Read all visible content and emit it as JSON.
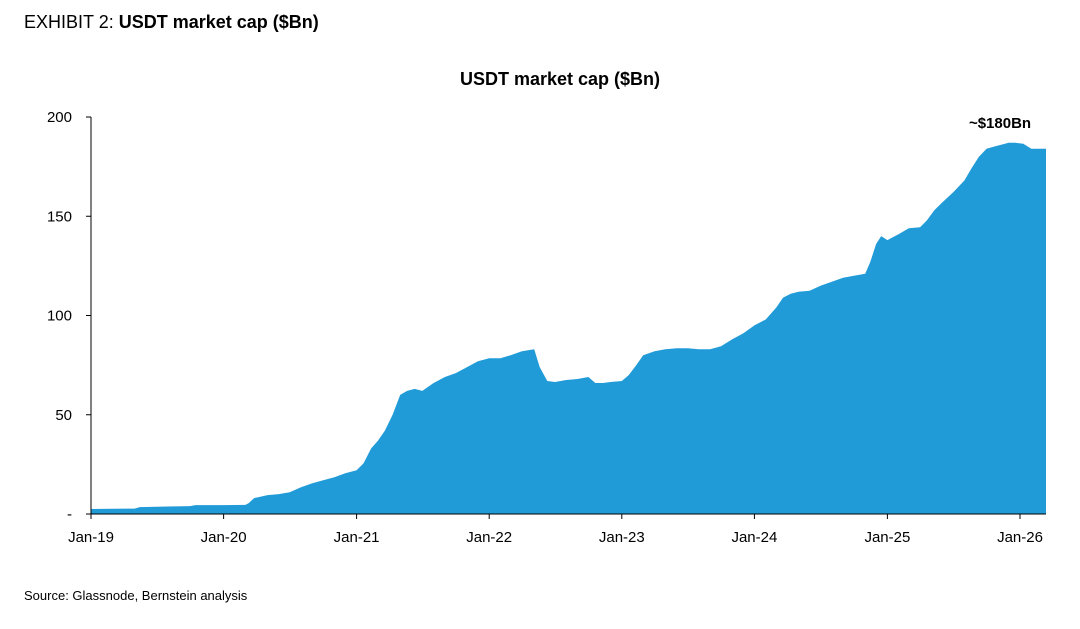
{
  "exhibit": {
    "prefix": "EXHIBIT 2: ",
    "title": "USDT market cap ($Bn)"
  },
  "source": "Source: Glassnode, Bernstein analysis",
  "colors": {
    "area": "#219BD8",
    "axis": "#000000"
  },
  "chart_data": {
    "type": "area",
    "title": "USDT market cap ($Bn)",
    "xlabel": "",
    "ylabel": "",
    "ylim": [
      0,
      200
    ],
    "yticks": [
      0,
      50,
      100,
      150,
      200
    ],
    "ytick_labels": [
      "-",
      "50",
      "100",
      "150",
      "200"
    ],
    "xticks": [
      "Jan-19",
      "Jan-20",
      "Jan-21",
      "Jan-22",
      "Jan-23",
      "Jan-24",
      "Jan-25",
      "Jan-26"
    ],
    "xlim": [
      "2019-01-01",
      "2026-03-01"
    ],
    "grid": false,
    "legend": "none",
    "annotations": [
      {
        "text": "~$180Bn",
        "x": "2025-10-01",
        "y": 180
      }
    ],
    "series": [
      {
        "x": [
          "2019-01-01",
          "2019-03-01",
          "2019-05-01",
          "2019-05-15",
          "2019-08-01",
          "2019-10-01",
          "2019-10-15",
          "2019-12-01",
          "2020-01-01",
          "2020-03-01",
          "2020-03-10",
          "2020-03-25",
          "2020-05-01",
          "2020-06-01",
          "2020-07-01",
          "2020-08-01",
          "2020-09-01",
          "2020-10-01",
          "2020-11-01",
          "2020-12-01",
          "2021-01-01",
          "2021-01-20",
          "2021-02-10",
          "2021-03-01",
          "2021-03-20",
          "2021-04-10",
          "2021-05-01",
          "2021-05-20",
          "2021-06-10",
          "2021-07-01",
          "2021-08-01",
          "2021-09-01",
          "2021-10-01",
          "2021-11-01",
          "2021-12-01",
          "2022-01-01",
          "2022-02-01",
          "2022-03-01",
          "2022-04-01",
          "2022-05-05",
          "2022-05-20",
          "2022-06-10",
          "2022-07-01",
          "2022-08-01",
          "2022-09-01",
          "2022-10-01",
          "2022-10-20",
          "2022-11-10",
          "2022-12-01",
          "2023-01-01",
          "2023-01-20",
          "2023-02-10",
          "2023-03-01",
          "2023-04-01",
          "2023-05-01",
          "2023-06-01",
          "2023-07-01",
          "2023-08-01",
          "2023-09-01",
          "2023-10-01",
          "2023-11-01",
          "2023-12-01",
          "2024-01-01",
          "2024-02-01",
          "2024-03-01",
          "2024-03-20",
          "2024-04-10",
          "2024-05-01",
          "2024-06-01",
          "2024-07-01",
          "2024-08-01",
          "2024-09-01",
          "2024-10-01",
          "2024-11-01",
          "2024-11-15",
          "2024-12-01",
          "2024-12-15",
          "2025-01-01",
          "2025-02-01",
          "2025-03-01",
          "2025-04-01",
          "2025-04-20",
          "2025-05-10",
          "2025-06-01",
          "2025-07-01",
          "2025-08-01",
          "2025-08-20",
          "2025-09-10",
          "2025-10-01",
          "2025-10-20",
          "2025-11-10",
          "2025-12-01",
          "2025-12-20",
          "2026-01-10",
          "2026-02-01",
          "2026-03-01"
        ],
        "values": [
          2.5,
          2.6,
          2.7,
          3.5,
          3.8,
          4.0,
          4.5,
          4.5,
          4.5,
          4.6,
          5.5,
          8.0,
          9.5,
          10.0,
          11.0,
          13.5,
          15.5,
          17.0,
          18.5,
          20.5,
          22.0,
          25.5,
          33.0,
          37.0,
          42.0,
          50.0,
          60.0,
          62.0,
          63.0,
          62.0,
          66.0,
          69.0,
          71.0,
          74.0,
          77.0,
          78.5,
          78.5,
          80.0,
          82.0,
          83.0,
          74.0,
          67.0,
          66.5,
          67.5,
          68.0,
          69.0,
          66.0,
          66.0,
          66.5,
          67.0,
          70.0,
          75.0,
          80.0,
          82.0,
          83.0,
          83.5,
          83.5,
          83.0,
          83.0,
          84.5,
          88.0,
          91.0,
          95.0,
          98.0,
          104.0,
          109.0,
          111.0,
          112.0,
          112.5,
          115.0,
          117.0,
          119.0,
          120.0,
          121.0,
          127.0,
          136.0,
          140.0,
          138.0,
          141.0,
          144.0,
          144.5,
          148.0,
          153.0,
          157.0,
          162.0,
          168.0,
          174.0,
          180.0,
          184.0,
          185.0,
          186.0,
          187.0,
          187.0,
          186.5,
          184.0,
          184.0
        ]
      }
    ]
  }
}
